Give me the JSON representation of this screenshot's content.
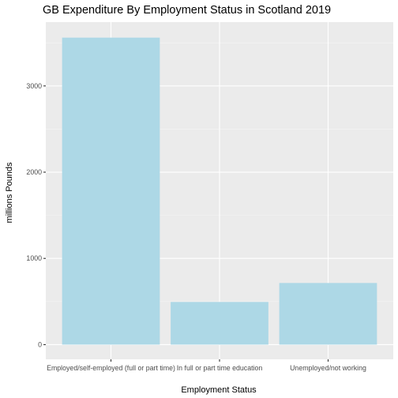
{
  "chart_data": {
    "type": "bar",
    "title": "GB Expenditure By Employment Status in Scotland 2019",
    "xlabel": "Employment Status",
    "ylabel": "millions Pounds",
    "categories": [
      "Employed/self-employed (full or part time)",
      "In full or part time education",
      "Unemployed/not working"
    ],
    "values": [
      3560,
      495,
      715
    ],
    "ylim": [
      -170,
      3740
    ],
    "yticks": [
      0,
      1000,
      2000,
      3000
    ],
    "grid": true,
    "legend": "none",
    "colors": {
      "bar": "#add8e6",
      "panel": "#ebebeb",
      "grid_major": "#ffffff",
      "grid_minor": "#f5f5f5"
    }
  }
}
